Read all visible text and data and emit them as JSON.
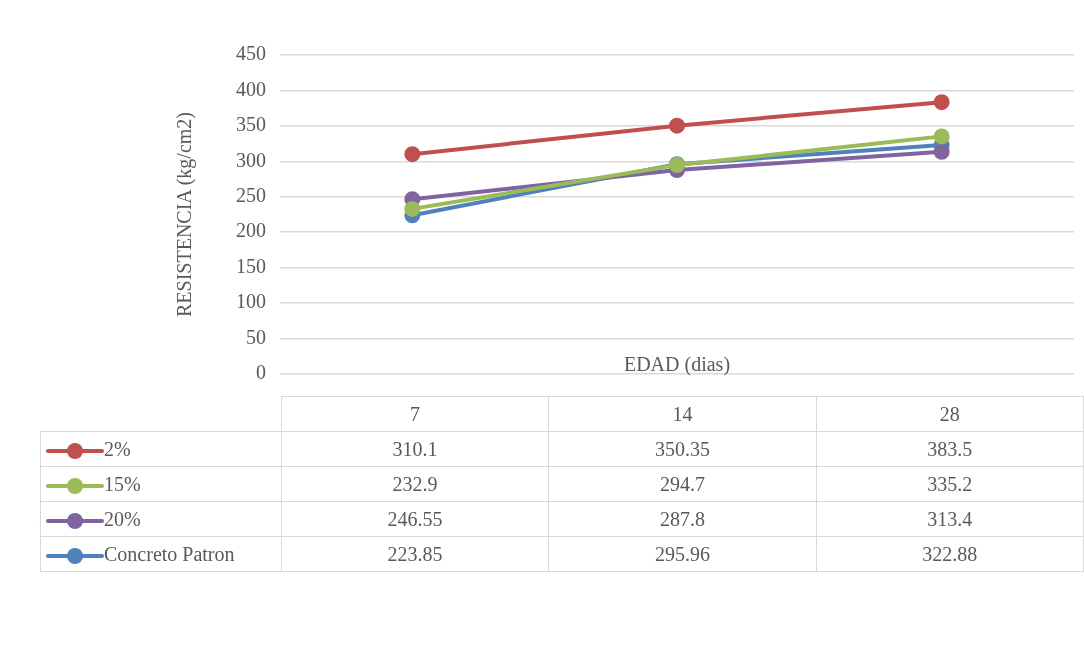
{
  "chart_data": {
    "type": "line",
    "xlabel": "EDAD (dias)",
    "ylabel": "RESISTENCIA (kg/cm2)",
    "categories": [
      "7",
      "14",
      "28"
    ],
    "series": [
      {
        "name": "2%",
        "color": "#c0504d",
        "values": [
          310.1,
          350.35,
          383.5
        ]
      },
      {
        "name": "15%",
        "color": "#9bbb59",
        "values": [
          232.9,
          294.7,
          335.2
        ]
      },
      {
        "name": "20%",
        "color": "#8064a2",
        "values": [
          246.55,
          287.8,
          313.4
        ]
      },
      {
        "name": "Concreto Patron",
        "color": "#4f81bd",
        "values": [
          223.85,
          295.96,
          322.88
        ]
      }
    ],
    "ylim": [
      0,
      450
    ],
    "yticks": [
      0,
      50,
      100,
      150,
      200,
      250,
      300,
      350,
      400,
      450
    ],
    "grid": "y",
    "legend": "bottom",
    "marker": "circle",
    "line_style": "solid",
    "data_labels": true
  }
}
